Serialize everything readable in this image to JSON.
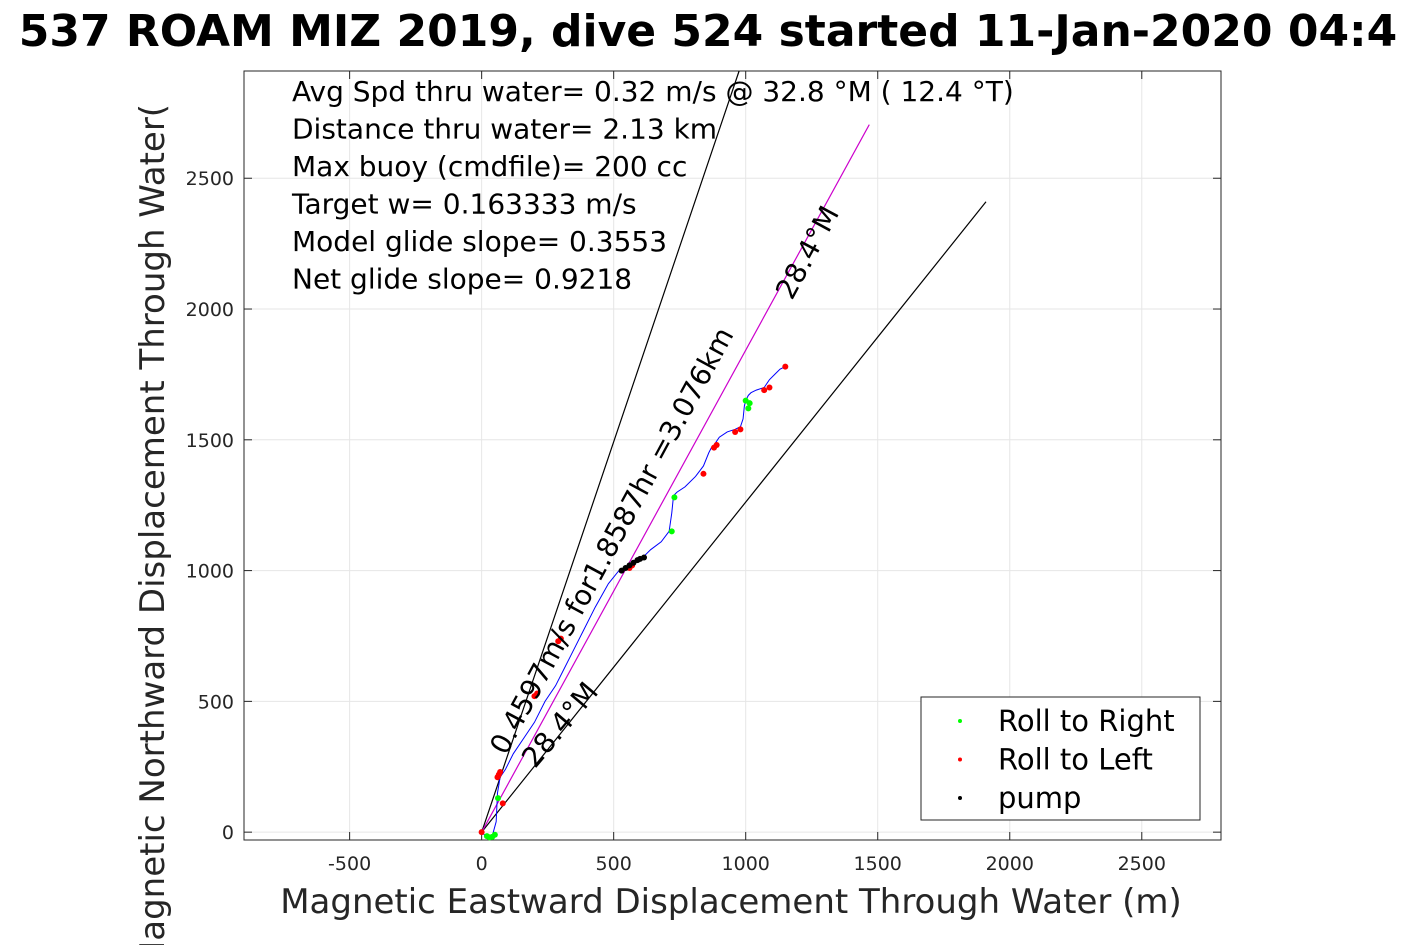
{
  "chart_data": {
    "type": "line",
    "title": "537 ROAM MIZ 2019, dive 524 started 11-Jan-2020 04:4",
    "xlabel": "Magnetic Eastward Displacement Through Water (m)",
    "ylabel": "Magnetic Northward Displacement Through Water(",
    "xlim": [
      -900,
      2800
    ],
    "ylim": [
      -30,
      2910
    ],
    "xticks": [
      -500,
      0,
      500,
      1000,
      1500,
      2000,
      2500
    ],
    "xtick_labels": [
      "-500",
      "0",
      "500",
      "1000",
      "1500",
      "2000",
      "2500"
    ],
    "yticks": [
      0,
      500,
      1000,
      1500,
      2000,
      2500
    ],
    "ytick_labels": [
      "0",
      "500",
      "1000",
      "1500",
      "2000",
      "2500"
    ],
    "grid": true,
    "legend_position": "bottom-right",
    "annotations": [
      "Avg Spd thru water=  0.32 m/s @  32.8 °M ( 12.4 °T)",
      "Distance thru water=  2.13 km",
      "Max buoy (cmdfile)= 200 cc",
      "Target w= 0.163333 m/s",
      "Model glide slope= 0.3553",
      "Net glide slope= 0.9218"
    ],
    "line_labels": [
      {
        "text": "0.4597m/s for1.8587hr =3.076km",
        "x": 92,
        "y": 290,
        "angle_deg": 61.6
      },
      {
        "text": "28.4°M",
        "x": 1175,
        "y": 2030,
        "angle_deg": 61.6
      },
      {
        "text": "28.4°M",
        "x": 202,
        "y": 240,
        "angle_deg": 50
      }
    ],
    "series": [
      {
        "name": "track",
        "color": "#0000ff",
        "x": [
          0,
          10,
          25,
          40,
          55,
          60,
          70,
          90,
          120,
          160,
          200,
          240,
          280,
          310,
          340,
          380,
          430,
          480,
          520,
          560,
          600,
          640,
          680,
          710,
          720,
          725,
          730,
          740,
          770,
          810,
          840,
          860,
          870,
          880,
          900,
          930,
          960,
          980,
          990,
          995,
          1000,
          1010,
          1020,
          1040,
          1070,
          1090,
          1110,
          1130,
          1150
        ],
        "y": [
          0,
          -10,
          -20,
          -15,
          40,
          150,
          210,
          240,
          300,
          360,
          420,
          500,
          560,
          620,
          680,
          760,
          860,
          950,
          1000,
          1020,
          1040,
          1080,
          1110,
          1150,
          1220,
          1270,
          1290,
          1300,
          1320,
          1360,
          1400,
          1450,
          1470,
          1480,
          1510,
          1530,
          1540,
          1550,
          1580,
          1630,
          1650,
          1670,
          1680,
          1690,
          1700,
          1730,
          1750,
          1770,
          1780
        ]
      },
      {
        "name": "Roll to Right",
        "color": "#00ff00",
        "marker": "dot",
        "x": [
          20,
          30,
          40,
          50,
          62,
          720,
          730,
          1010,
          1015,
          1000
        ],
        "y": [
          -15,
          -20,
          -18,
          -10,
          130,
          1150,
          1280,
          1620,
          1640,
          1650
        ]
      },
      {
        "name": "Roll to Left",
        "color": "#ff0000",
        "marker": "dot",
        "x": [
          0,
          60,
          65,
          70,
          80,
          200,
          210,
          290,
          300,
          560,
          570,
          840,
          880,
          890,
          960,
          980,
          1070,
          1090,
          1150
        ],
        "y": [
          0,
          210,
          220,
          230,
          110,
          520,
          530,
          730,
          740,
          1010,
          1020,
          1370,
          1470,
          1480,
          1530,
          1540,
          1690,
          1700,
          1780
        ]
      },
      {
        "name": "pump",
        "color": "#000000",
        "marker": "dot",
        "x": [
          530,
          545,
          560,
          575,
          590,
          600,
          615
        ],
        "y": [
          1000,
          1010,
          1020,
          1030,
          1040,
          1045,
          1050
        ]
      }
    ],
    "reference_lines": [
      {
        "color": "#000000",
        "x": [
          0,
          975
        ],
        "y": [
          0,
          2910
        ]
      },
      {
        "color": "#000000",
        "x": [
          0,
          1910
        ],
        "y": [
          0,
          2410
        ]
      },
      {
        "color": "#cc00cc",
        "x": [
          0,
          1468
        ],
        "y": [
          0,
          2705
        ]
      }
    ]
  }
}
